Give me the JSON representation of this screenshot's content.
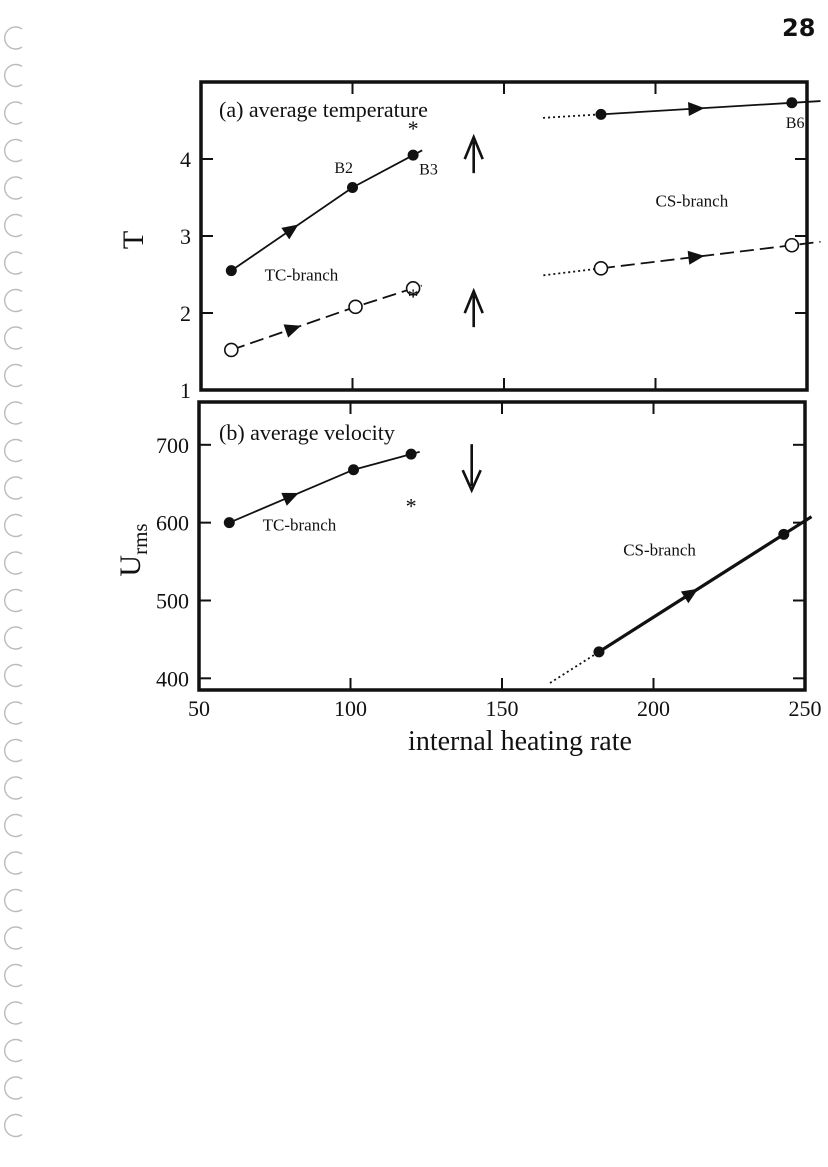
{
  "page_number": "28",
  "chart_data": [
    {
      "type": "line",
      "title": "(a) average temperature",
      "ylabel": "T",
      "xlim": [
        50,
        250
      ],
      "ylim": [
        1,
        5
      ],
      "yticks": [
        1,
        2,
        3,
        4
      ],
      "series": [
        {
          "name": "TC-branch",
          "marker": "filled",
          "style": "solid",
          "points": [
            [
              60,
              2.55
            ],
            [
              100,
              3.63
            ],
            [
              120,
              4.05
            ]
          ]
        },
        {
          "name": "TC-branch",
          "marker": "open",
          "style": "dashed",
          "points": [
            [
              60,
              1.52
            ],
            [
              101,
              2.08
            ],
            [
              120,
              2.32
            ]
          ]
        },
        {
          "name": "CS-branch",
          "marker": "filled",
          "style": "solid",
          "points": [
            [
              182,
              4.58
            ],
            [
              245,
              4.73
            ]
          ]
        },
        {
          "name": "CS-branch",
          "marker": "open",
          "style": "dashed",
          "points": [
            [
              182,
              2.58
            ],
            [
              245,
              2.88
            ]
          ]
        }
      ],
      "annotations": [
        {
          "text": "B2",
          "x": 94,
          "y": 3.82
        },
        {
          "text": "B3",
          "x": 122,
          "y": 3.8
        },
        {
          "text": "B6",
          "x": 243,
          "y": 4.4
        },
        {
          "text": "TC-branch",
          "x": 71,
          "y": 2.42
        },
        {
          "text": "CS-branch",
          "x": 200,
          "y": 3.38
        },
        {
          "text": "*",
          "x": 120,
          "y": 4.3
        },
        {
          "text": "*",
          "x": 120,
          "y": 2.12
        }
      ],
      "arrows": [
        {
          "x": 140,
          "y": 4.05,
          "direction": "up"
        },
        {
          "x": 140,
          "y": 2.05,
          "direction": "up"
        }
      ]
    },
    {
      "type": "line",
      "title": "(b) average velocity",
      "ylabel": "U",
      "ylabel_subscript": "rms",
      "xlabel": "internal heating rate",
      "xlim": [
        50,
        250
      ],
      "ylim": [
        385,
        755
      ],
      "xticks": [
        50,
        100,
        150,
        200,
        250
      ],
      "yticks": [
        400,
        500,
        600,
        700
      ],
      "series": [
        {
          "name": "TC-branch",
          "marker": "filled",
          "style": "solid",
          "points": [
            [
              60,
              600
            ],
            [
              101,
              668
            ],
            [
              120,
              688
            ]
          ]
        },
        {
          "name": "CS-branch",
          "marker": "filled",
          "style": "solid",
          "points": [
            [
              182,
              434
            ],
            [
              243,
              585
            ]
          ]
        }
      ],
      "annotations": [
        {
          "text": "TC-branch",
          "x": 71,
          "y": 590
        },
        {
          "text": "CS-branch",
          "x": 190,
          "y": 558
        },
        {
          "text": "*",
          "x": 120,
          "y": 612
        }
      ],
      "arrows": [
        {
          "x": 140,
          "y": 670,
          "direction": "down"
        }
      ]
    }
  ]
}
